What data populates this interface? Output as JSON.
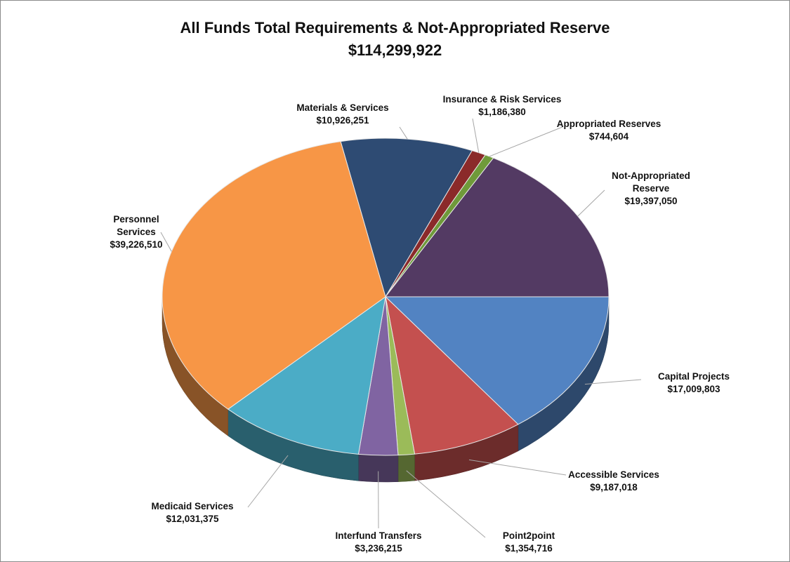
{
  "chart_data": {
    "type": "pie",
    "title": "All Funds Total Requirements & Not-Appropriated Reserve",
    "subtitle": "$114,299,922",
    "categories": [
      "Materials & Services",
      "Insurance & Risk Services",
      "Appropriated Reserves",
      "Not-Appropriated Reserve",
      "Capital Projects",
      "Accessible Services",
      "Point2point",
      "Interfund Transfers",
      "Medicaid Services",
      "Personnel Services"
    ],
    "values": [
      10926251,
      1186380,
      744604,
      19397050,
      17009803,
      9187018,
      1354716,
      3236215,
      12031375,
      39226510
    ],
    "value_labels": [
      "$10,926,251",
      "$1,186,380",
      "$744,604",
      "$19,397,050",
      "$17,009,803",
      "$9,187,018",
      "$1,354,716",
      "$3,236,215",
      "$12,031,375",
      "$39,226,510"
    ],
    "colors": [
      "#2e4b73",
      "#8b2a2a",
      "#6f9a3a",
      "#533a63",
      "#5283c2",
      "#c4504f",
      "#9bbb59",
      "#8064a2",
      "#4bacc6",
      "#f79646"
    ]
  }
}
